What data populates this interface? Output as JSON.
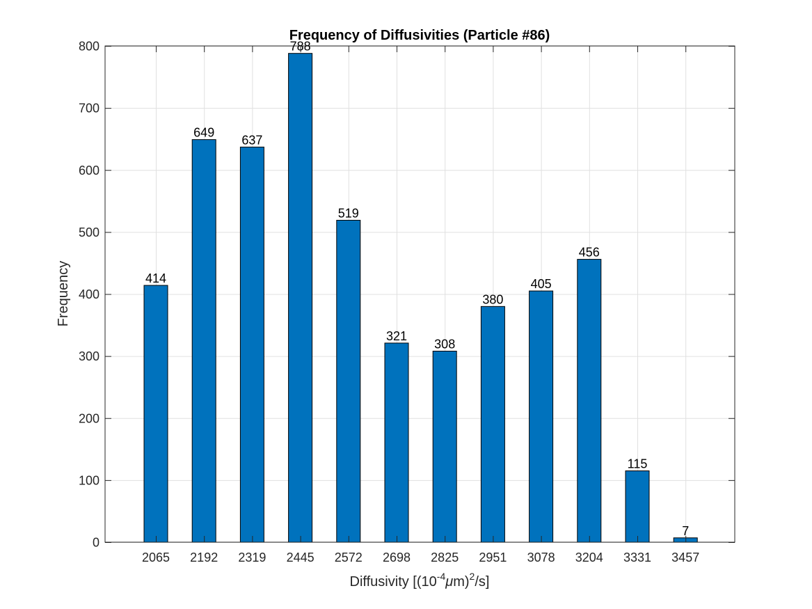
{
  "chart_data": {
    "type": "bar",
    "title": "Frequency of Diffusivities (Particle #86)",
    "xlabel": {
      "prefix": "Diffusivity [(10",
      "exponent": "-4",
      "mu": "μ",
      "unit": "m)",
      "exponent2": "2",
      "suffix": "/s]"
    },
    "ylabel": "Frequency",
    "categories": [
      "2065",
      "2192",
      "2319",
      "2445",
      "2572",
      "2698",
      "2825",
      "2951",
      "3078",
      "3204",
      "3331",
      "3457"
    ],
    "values": [
      414,
      649,
      637,
      788,
      519,
      321,
      308,
      380,
      405,
      456,
      115,
      7
    ],
    "data_labels": [
      "414",
      "649",
      "637",
      "788",
      "519",
      "321",
      "308",
      "380",
      "405",
      "456",
      "115",
      "7"
    ],
    "ylim": [
      0,
      800
    ],
    "yticks": [
      0,
      100,
      200,
      300,
      400,
      500,
      600,
      700,
      800
    ],
    "ytick_labels": [
      "0",
      "100",
      "200",
      "300",
      "400",
      "500",
      "600",
      "700",
      "800"
    ],
    "grid": true,
    "bar_color": "#0072BD",
    "bar_edge_color": "#000000",
    "grid_color": "#E0E0E0",
    "axes_color": "#262626"
  }
}
